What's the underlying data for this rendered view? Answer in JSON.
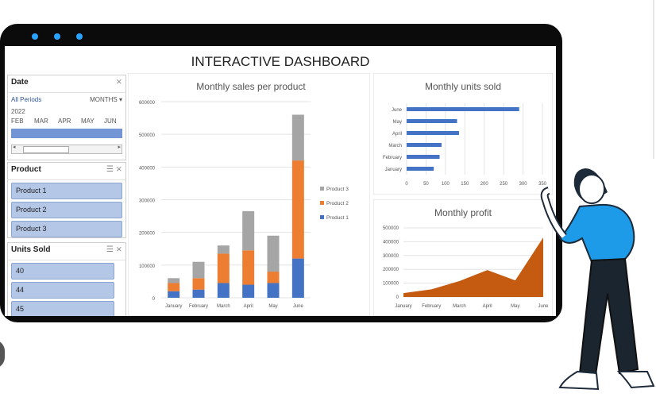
{
  "dashboard_title": "INTERACTIVE DASHBOARD",
  "date_slicer": {
    "title": "Date",
    "period": "All Periods",
    "mode": "MONTHS",
    "year": "2022",
    "months": [
      "FEB",
      "MAR",
      "APR",
      "MAY",
      "JUN"
    ]
  },
  "product_slicer": {
    "title": "Product",
    "items": [
      "Product 1",
      "Product 2",
      "Product 3"
    ]
  },
  "units_slicer": {
    "title": "Units Sold",
    "items": [
      "40",
      "44",
      "45"
    ]
  },
  "colors": {
    "product1": "#4472c4",
    "product2": "#ed7d31",
    "product3": "#a5a5a5",
    "profit": "#c55a11",
    "bar": "#4472c4"
  },
  "chart_data": [
    {
      "type": "bar",
      "stacked": true,
      "title": "Monthly sales per product",
      "categories": [
        "January",
        "February",
        "March",
        "April",
        "May",
        "June"
      ],
      "series": [
        {
          "name": "Product 1",
          "values": [
            20000,
            25000,
            45000,
            40000,
            45000,
            120000
          ]
        },
        {
          "name": "Product 2",
          "values": [
            25000,
            35000,
            90000,
            105000,
            35000,
            300000
          ]
        },
        {
          "name": "Product 3",
          "values": [
            15000,
            50000,
            25000,
            120000,
            110000,
            140000
          ]
        }
      ],
      "ylim": [
        0,
        600000
      ],
      "yticks": [
        "0",
        "100000",
        "200000",
        "300000",
        "400000",
        "500000",
        "600000"
      ],
      "legend": "right"
    },
    {
      "type": "bar",
      "orientation": "horizontal",
      "title": "Monthly units sold",
      "categories": [
        "January",
        "February",
        "March",
        "April",
        "May",
        "June"
      ],
      "values": [
        70,
        85,
        90,
        135,
        130,
        290
      ],
      "xlim": [
        0,
        350
      ],
      "xticks": [
        "0",
        "50",
        "100",
        "150",
        "200",
        "250",
        "300",
        "350"
      ]
    },
    {
      "type": "area",
      "title": "Monthly profit",
      "categories": [
        "January",
        "February",
        "March",
        "April",
        "May",
        "June"
      ],
      "values": [
        28000,
        55000,
        115000,
        195000,
        120000,
        430000
      ],
      "ylim": [
        0,
        500000
      ],
      "yticks": [
        "0",
        "100000",
        "200000",
        "300000",
        "400000",
        "500000"
      ]
    }
  ]
}
